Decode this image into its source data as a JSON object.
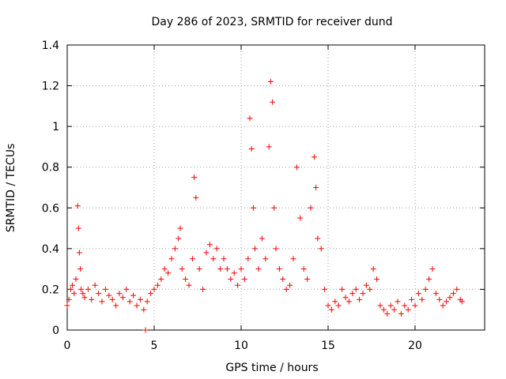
{
  "chart_data": {
    "type": "scatter",
    "title": "Day 286 of 2023, SRMTID for receiver dund",
    "xlabel": "GPS time / hours",
    "ylabel": "SRMTID / TECUs",
    "xlim": [
      0,
      24
    ],
    "ylim": [
      0,
      1.4
    ],
    "xticks": [
      0,
      5,
      10,
      15,
      20
    ],
    "yticks": [
      0,
      0.2,
      0.4,
      0.6,
      0.8,
      1,
      1.2,
      1.4
    ],
    "xtick_labels": [
      "0",
      "5",
      "10",
      "15",
      "20"
    ],
    "ytick_labels": [
      "0",
      "0.2",
      "0.4",
      "0.6",
      "0.8",
      "1",
      "1.2",
      "1.4"
    ],
    "grid": true,
    "marker": "+",
    "series": [
      {
        "name": "SRMTID",
        "color": "#ff0000",
        "x": [
          0.0,
          0.1,
          0.2,
          0.3,
          0.4,
          0.5,
          0.6,
          0.65,
          0.7,
          0.75,
          0.8,
          0.9,
          1.0,
          1.2,
          1.4,
          1.6,
          1.8,
          2.0,
          2.2,
          2.4,
          2.6,
          2.8,
          3.0,
          3.2,
          3.4,
          3.6,
          3.8,
          4.0,
          4.2,
          4.4,
          4.5,
          4.6,
          4.8,
          5.0,
          5.2,
          5.4,
          5.6,
          5.8,
          6.0,
          6.2,
          6.4,
          6.5,
          6.6,
          6.8,
          7.0,
          7.2,
          7.3,
          7.4,
          7.6,
          7.8,
          8.0,
          8.2,
          8.4,
          8.6,
          8.8,
          9.0,
          9.2,
          9.4,
          9.6,
          9.8,
          10.0,
          10.2,
          10.4,
          10.5,
          10.6,
          10.7,
          10.8,
          11.0,
          11.2,
          11.4,
          11.6,
          11.7,
          11.8,
          11.9,
          12.0,
          12.2,
          12.4,
          12.6,
          12.8,
          13.0,
          13.2,
          13.4,
          13.6,
          13.8,
          14.0,
          14.2,
          14.3,
          14.4,
          14.6,
          14.8,
          15.0,
          15.2,
          15.4,
          15.6,
          15.8,
          16.0,
          16.2,
          16.4,
          16.6,
          16.8,
          17.0,
          17.2,
          17.4,
          17.6,
          17.8,
          18.0,
          18.2,
          18.4,
          18.6,
          18.8,
          19.0,
          19.2,
          19.4,
          19.6,
          19.8,
          20.0,
          20.2,
          20.4,
          20.6,
          20.8,
          21.0,
          21.2,
          21.4,
          21.6,
          21.8,
          22.0,
          22.2,
          22.4,
          22.6,
          22.7
        ],
        "y": [
          0.12,
          0.15,
          0.2,
          0.22,
          0.18,
          0.25,
          0.61,
          0.5,
          0.38,
          0.3,
          0.2,
          0.18,
          0.16,
          0.2,
          0.15,
          0.22,
          0.18,
          0.14,
          0.2,
          0.17,
          0.15,
          0.12,
          0.18,
          0.16,
          0.2,
          0.14,
          0.17,
          0.12,
          0.15,
          0.1,
          0.0,
          0.14,
          0.18,
          0.2,
          0.22,
          0.25,
          0.3,
          0.28,
          0.35,
          0.4,
          0.45,
          0.5,
          0.3,
          0.25,
          0.22,
          0.35,
          0.75,
          0.65,
          0.3,
          0.2,
          0.38,
          0.42,
          0.35,
          0.4,
          0.3,
          0.35,
          0.3,
          0.25,
          0.28,
          0.22,
          0.3,
          0.25,
          0.35,
          1.04,
          0.89,
          0.6,
          0.4,
          0.3,
          0.45,
          0.35,
          0.9,
          1.22,
          1.12,
          0.6,
          0.4,
          0.3,
          0.25,
          0.2,
          0.22,
          0.35,
          0.8,
          0.55,
          0.3,
          0.25,
          0.6,
          0.85,
          0.7,
          0.45,
          0.4,
          0.2,
          0.12,
          0.1,
          0.14,
          0.12,
          0.2,
          0.16,
          0.14,
          0.18,
          0.2,
          0.15,
          0.18,
          0.22,
          0.2,
          0.3,
          0.25,
          0.12,
          0.1,
          0.08,
          0.12,
          0.1,
          0.14,
          0.08,
          0.12,
          0.1,
          0.15,
          0.12,
          0.18,
          0.15,
          0.2,
          0.25,
          0.3,
          0.18,
          0.15,
          0.12,
          0.14,
          0.16,
          0.18,
          0.2,
          0.15,
          0.14
        ]
      }
    ]
  }
}
